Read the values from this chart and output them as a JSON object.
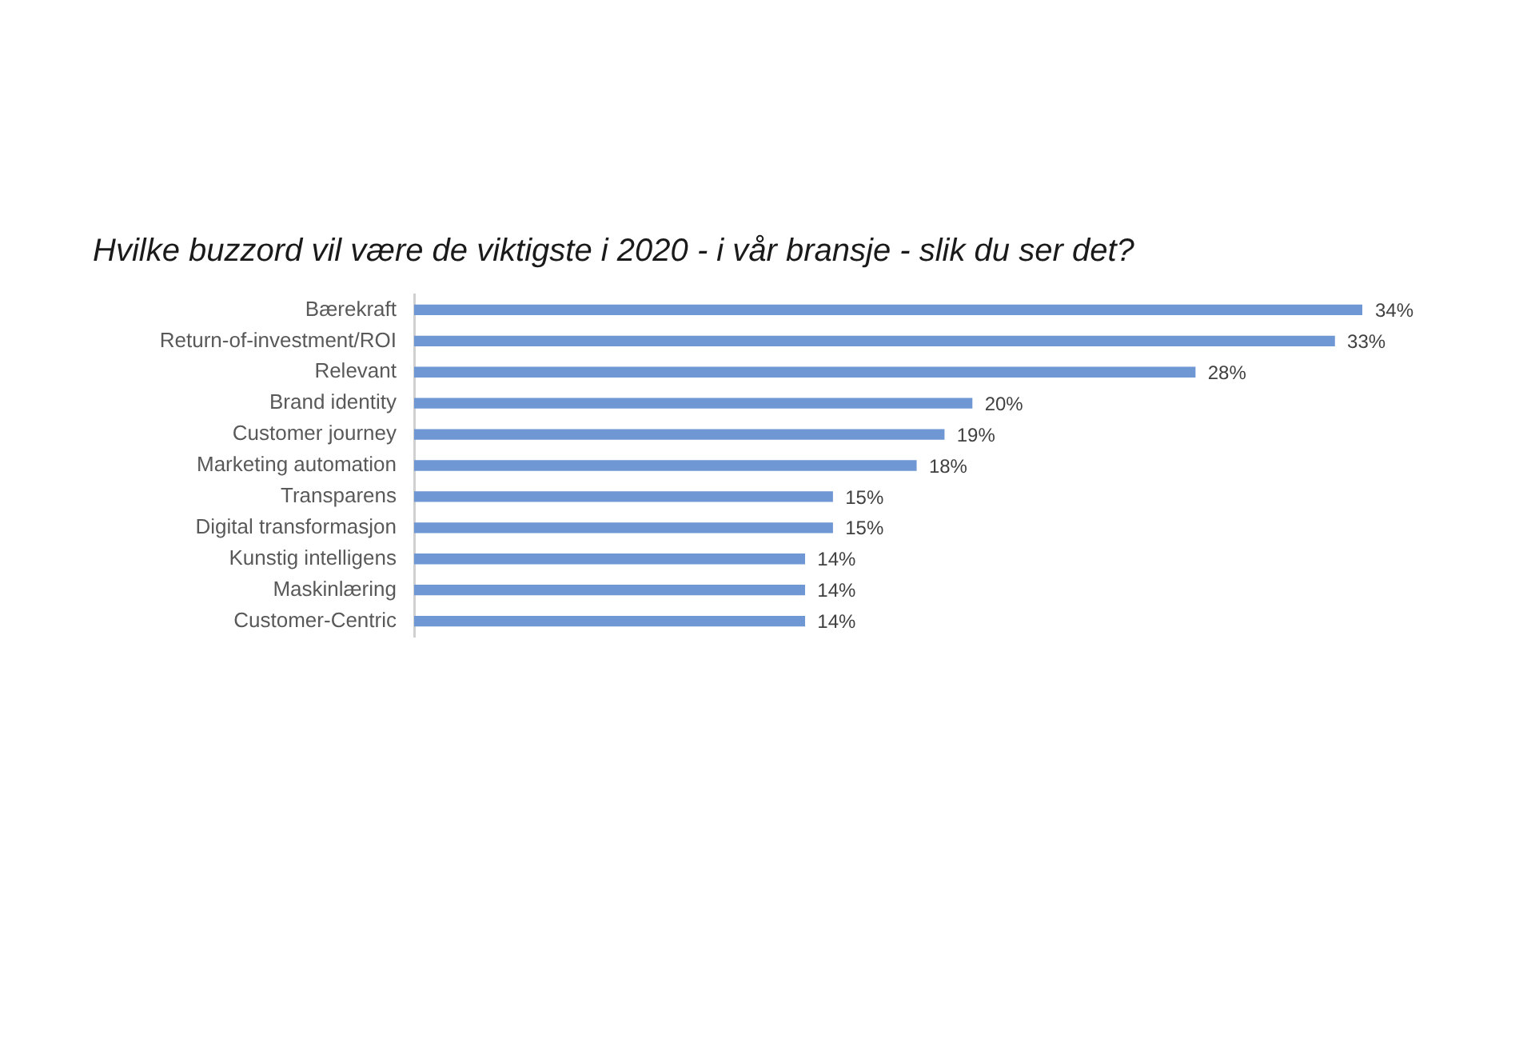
{
  "chart_data": {
    "type": "bar",
    "orientation": "horizontal",
    "title": "Hvilke buzzord vil være de viktigste i 2020 - i vår bransje - slik du ser det?",
    "categories": [
      "Bærekraft",
      "Return-of-investment/ROI",
      "Relevant",
      "Brand identity",
      "Customer journey",
      "Marketing automation",
      "Transparens",
      "Digital transformasjon",
      "Kunstig intelligens",
      "Maskinlæring",
      "Customer-Centric"
    ],
    "values": [
      34,
      33,
      28,
      20,
      19,
      18,
      15,
      15,
      14,
      14,
      14
    ],
    "value_labels": [
      "34%",
      "33%",
      "28%",
      "20%",
      "19%",
      "18%",
      "15%",
      "15%",
      "14%",
      "14%",
      "14%"
    ],
    "color": "#6f97d3"
  }
}
